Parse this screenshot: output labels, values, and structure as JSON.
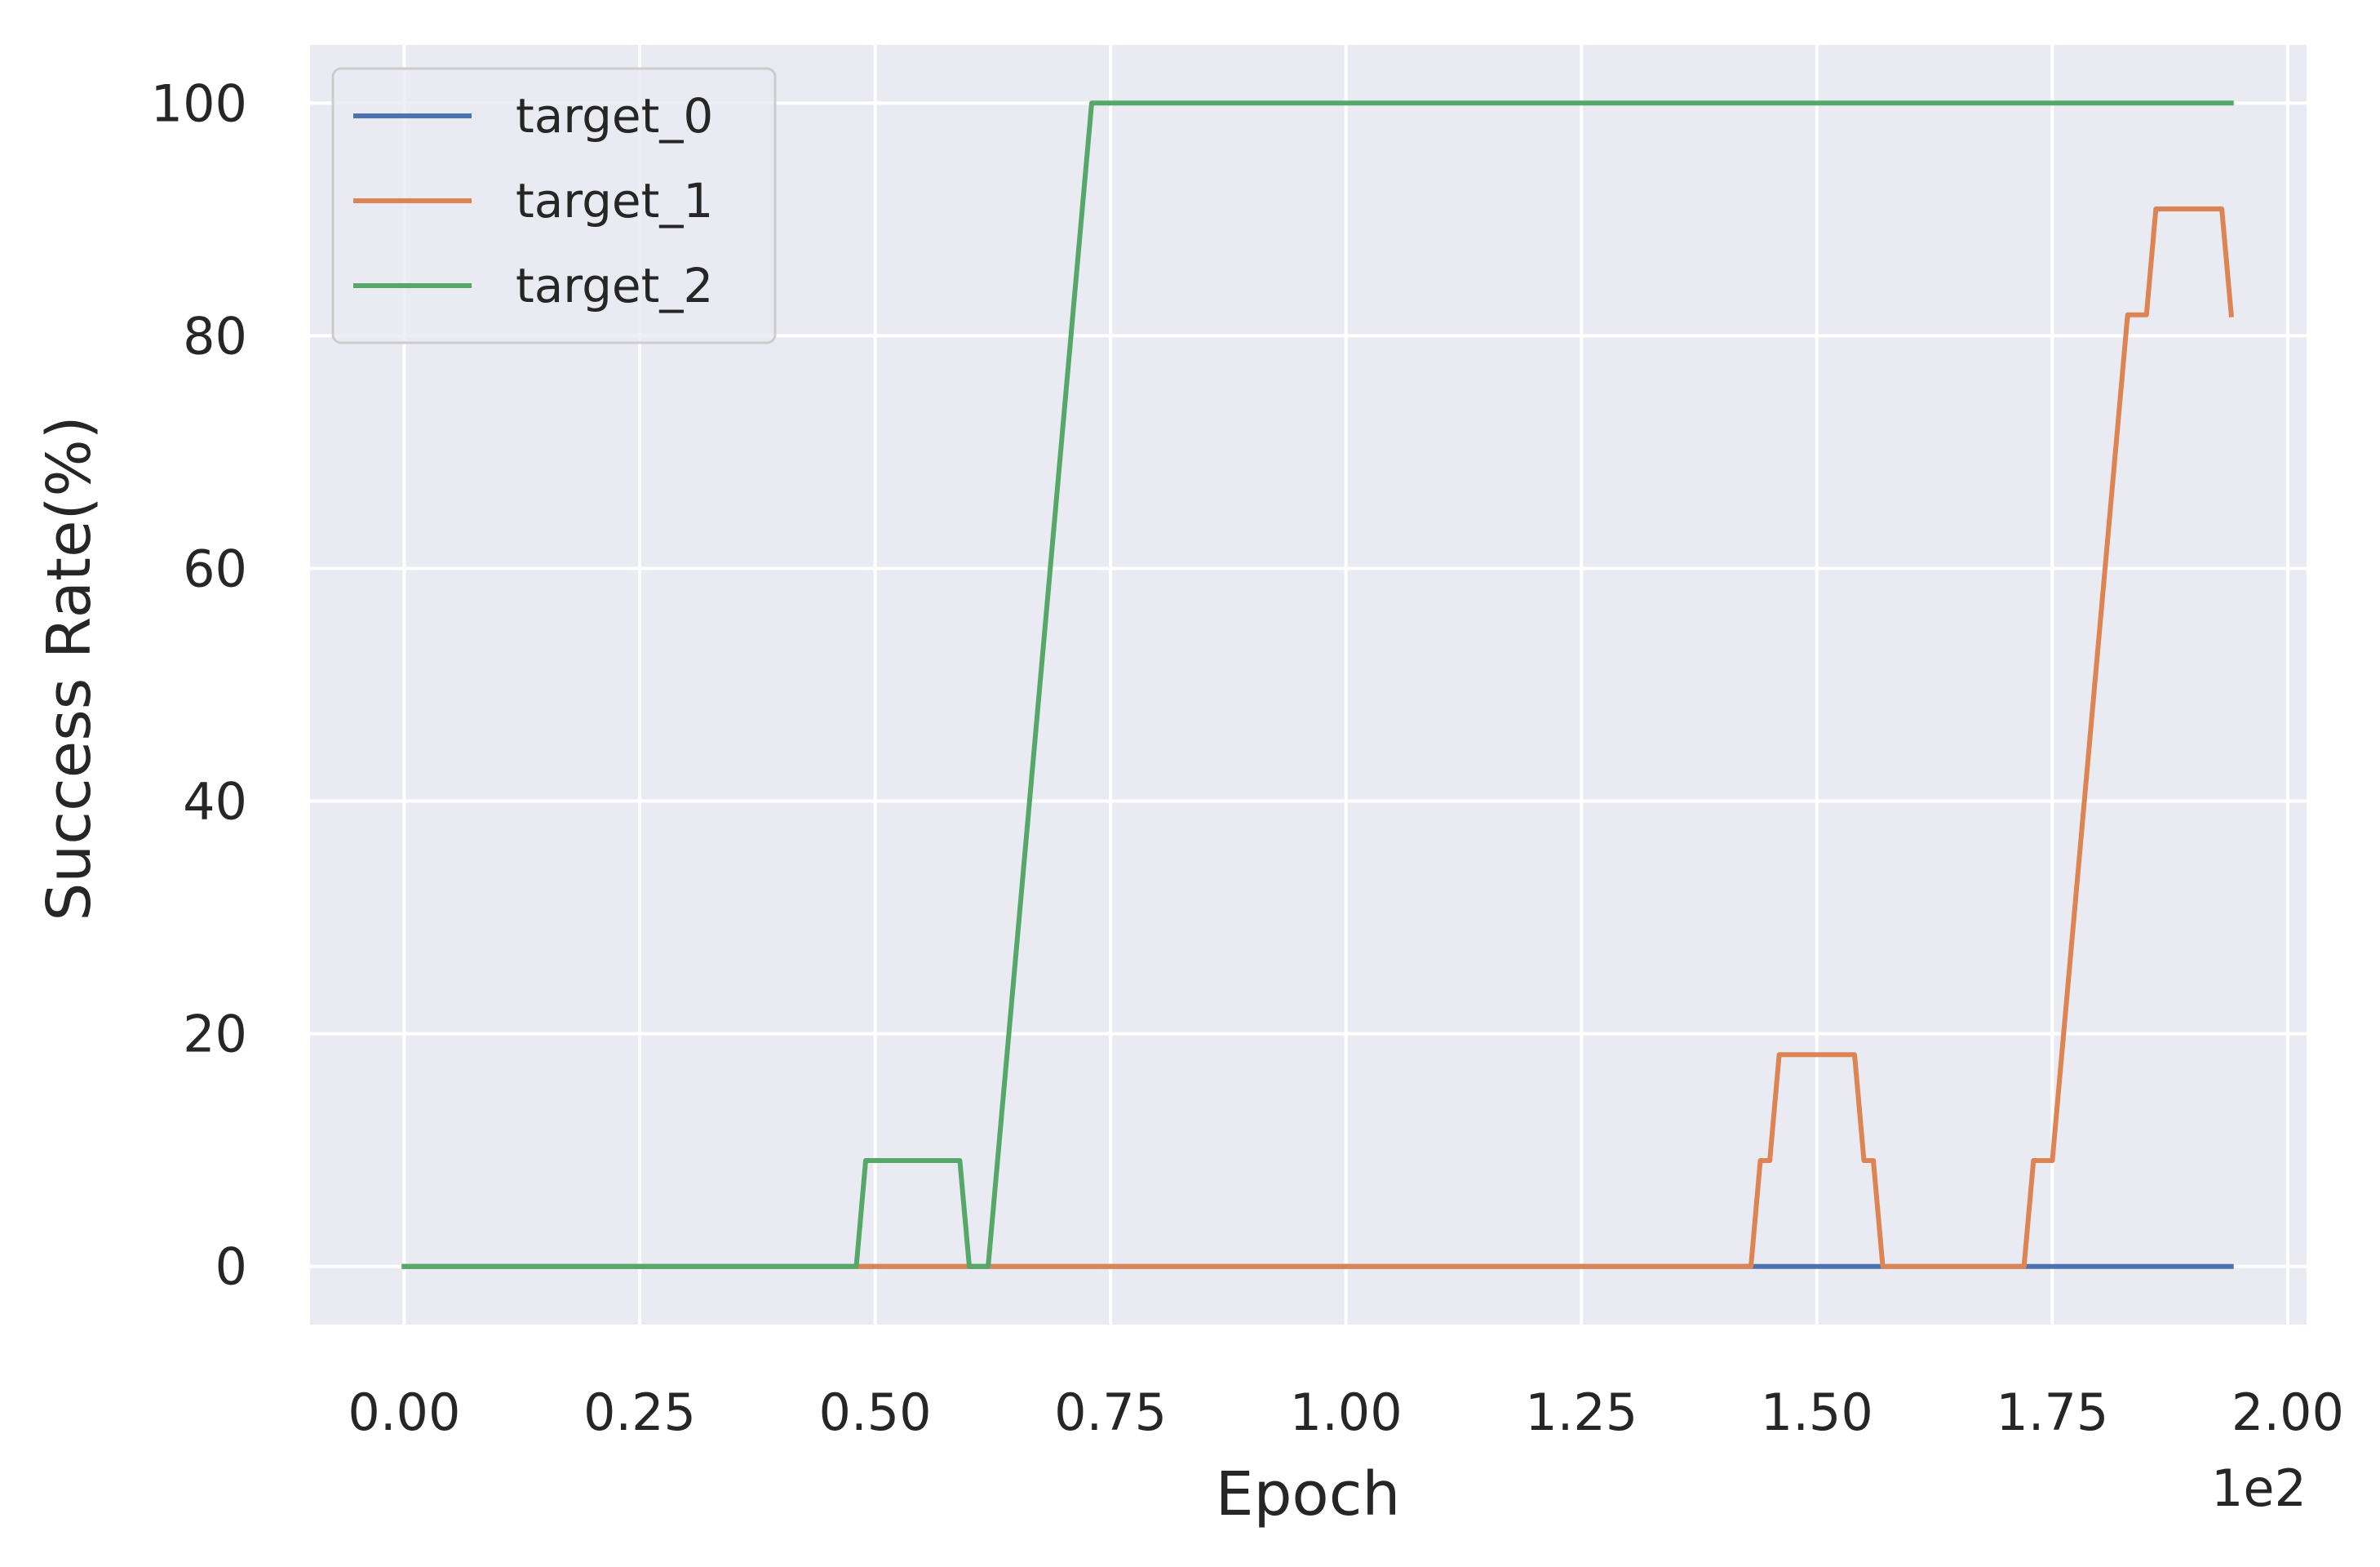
{
  "chart_data": {
    "type": "line",
    "title": "",
    "xlabel": "Epoch",
    "ylabel": "Success Rate(%)",
    "x_offset_text": "1e2",
    "xlim": [
      -0.1,
      2.02
    ],
    "ylim": [
      -5,
      105
    ],
    "xticks": [
      0.0,
      0.25,
      0.5,
      0.75,
      1.0,
      1.25,
      1.5,
      1.75,
      2.0
    ],
    "xtick_labels": [
      "0.00",
      "0.25",
      "0.50",
      "0.75",
      "1.00",
      "1.25",
      "1.50",
      "1.75",
      "2.00"
    ],
    "yticks": [
      0,
      20,
      40,
      60,
      80,
      100
    ],
    "ytick_labels": [
      "0",
      "20",
      "40",
      "60",
      "80",
      "100"
    ],
    "grid": true,
    "legend_position": "top-left",
    "colors": {
      "background": "#EAEAF2",
      "grid": "#FFFFFF"
    },
    "series": [
      {
        "name": "target_0",
        "color": "#4C72B0",
        "x": [
          0.0,
          1.94
        ],
        "y": [
          0,
          0
        ]
      },
      {
        "name": "target_1",
        "color": "#DD8452",
        "x": [
          0.0,
          1.43,
          1.44,
          1.45,
          1.46,
          1.54,
          1.55,
          1.56,
          1.57,
          1.72,
          1.73,
          1.75,
          1.83,
          1.85,
          1.86,
          1.93,
          1.94
        ],
        "y": [
          0,
          0,
          9.1,
          9.1,
          18.2,
          18.2,
          9.1,
          9.1,
          0,
          0,
          9.1,
          9.1,
          81.8,
          81.8,
          90.9,
          90.9,
          81.8
        ]
      },
      {
        "name": "target_2",
        "color": "#55A868",
        "x": [
          0.0,
          0.48,
          0.49,
          0.59,
          0.6,
          0.62,
          0.73,
          1.94
        ],
        "y": [
          0,
          0,
          9.1,
          9.1,
          0,
          0,
          100,
          100
        ]
      }
    ]
  }
}
